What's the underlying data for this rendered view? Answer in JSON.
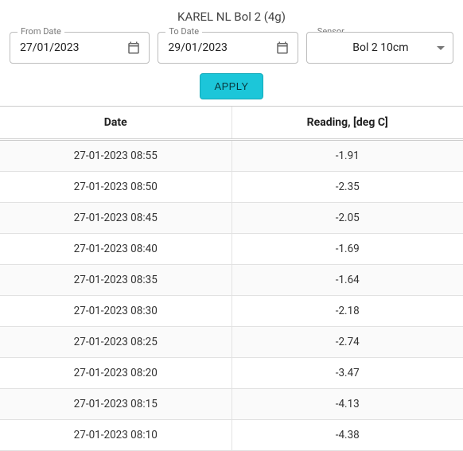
{
  "title": "KAREL NL Bol 2 (4g)",
  "filters": {
    "from": {
      "label": "From Date",
      "value": "27/01/2023"
    },
    "to": {
      "label": "To Date",
      "value": "29/01/2023"
    },
    "sensor": {
      "label": "Sensor",
      "value": "Bol 2 10cm"
    }
  },
  "apply_label": "APPLY",
  "table": {
    "columns": [
      "Date",
      "Reading, [deg C]"
    ],
    "rows": [
      [
        "27-01-2023 08:55",
        "-1.91"
      ],
      [
        "27-01-2023 08:50",
        "-2.35"
      ],
      [
        "27-01-2023 08:45",
        "-2.05"
      ],
      [
        "27-01-2023 08:40",
        "-1.69"
      ],
      [
        "27-01-2023 08:35",
        "-1.64"
      ],
      [
        "27-01-2023 08:30",
        "-2.18"
      ],
      [
        "27-01-2023 08:25",
        "-2.74"
      ],
      [
        "27-01-2023 08:20",
        "-3.47"
      ],
      [
        "27-01-2023 08:15",
        "-4.13"
      ],
      [
        "27-01-2023 08:10",
        "-4.38"
      ]
    ]
  },
  "colors": {
    "apply_bg": "#1cc6d9",
    "apply_border": "#15aab9",
    "border": "#bdbdbd",
    "row_alt": "#fafafa",
    "grid": "#e2e2e2"
  }
}
